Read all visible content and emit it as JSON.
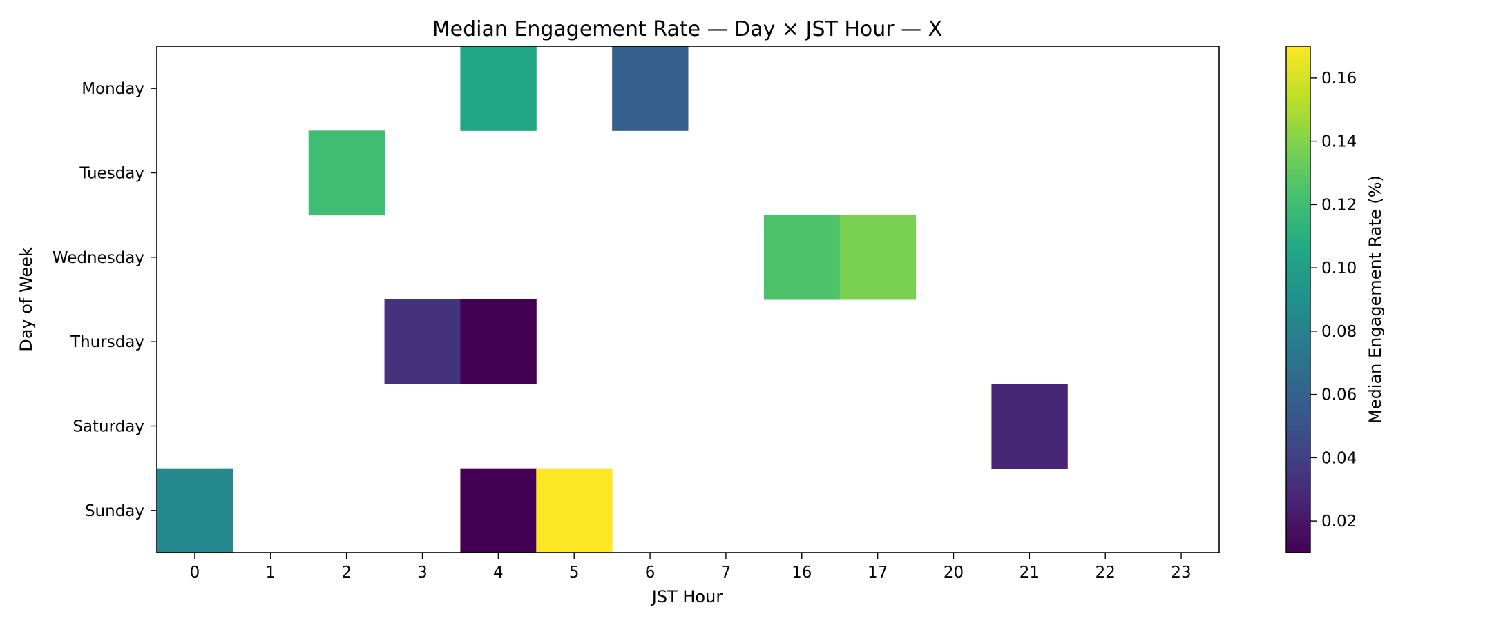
{
  "chart_data": {
    "type": "heatmap",
    "title": "Median Engagement Rate — Day × JST Hour — X",
    "xlabel": "JST Hour",
    "ylabel": "Day of Week",
    "x_categories": [
      "0",
      "1",
      "2",
      "3",
      "4",
      "5",
      "6",
      "7",
      "16",
      "17",
      "20",
      "21",
      "22",
      "23"
    ],
    "y_categories": [
      "Monday",
      "Tuesday",
      "Wednesday",
      "Thursday",
      "Saturday",
      "Sunday"
    ],
    "cells": [
      {
        "day": "Monday",
        "hour": "4",
        "value": 0.105
      },
      {
        "day": "Monday",
        "hour": "6",
        "value": 0.058
      },
      {
        "day": "Tuesday",
        "hour": "2",
        "value": 0.12
      },
      {
        "day": "Wednesday",
        "hour": "16",
        "value": 0.125
      },
      {
        "day": "Wednesday",
        "hour": "17",
        "value": 0.138
      },
      {
        "day": "Thursday",
        "hour": "3",
        "value": 0.033
      },
      {
        "day": "Thursday",
        "hour": "4",
        "value": 0.01
      },
      {
        "day": "Saturday",
        "hour": "21",
        "value": 0.027
      },
      {
        "day": "Sunday",
        "hour": "0",
        "value": 0.084
      },
      {
        "day": "Sunday",
        "hour": "4",
        "value": 0.01
      },
      {
        "day": "Sunday",
        "hour": "5",
        "value": 0.17
      }
    ],
    "colorbar": {
      "label": "Median Engagement Rate (%)",
      "colormap": "viridis",
      "range": [
        0.01,
        0.17
      ],
      "ticks": [
        "0.02",
        "0.04",
        "0.06",
        "0.08",
        "0.10",
        "0.12",
        "0.14",
        "0.16"
      ]
    },
    "missing_color": "#ffffff"
  }
}
